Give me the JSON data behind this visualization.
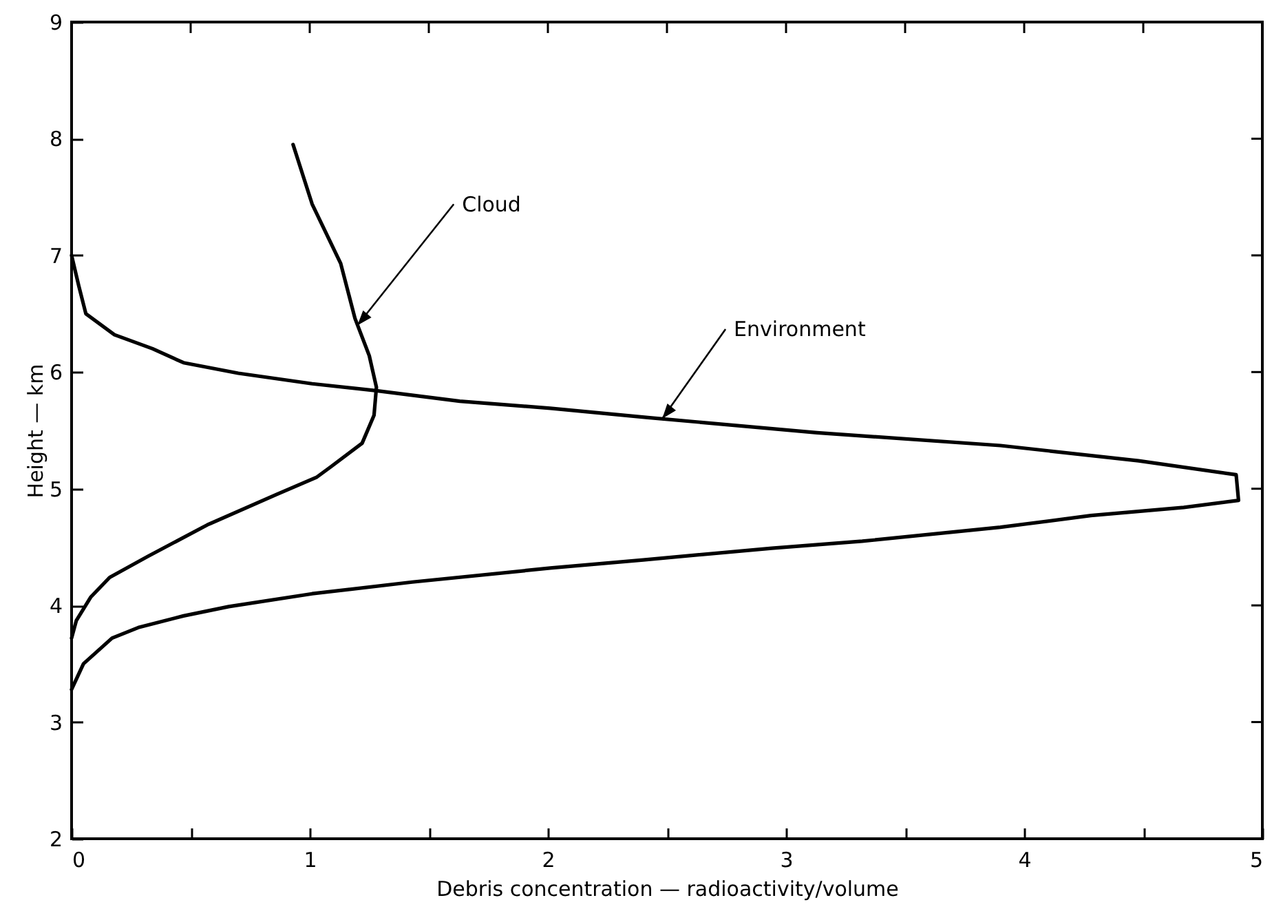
{
  "chart_data": {
    "type": "line",
    "xlabel": "Debris concentration — radioactivity/volume",
    "ylabel": "Height — km",
    "xlim": [
      0,
      5
    ],
    "ylim": [
      2,
      9
    ],
    "xticks": [
      0,
      {
        "value": 0.5,
        "label": null
      },
      1,
      {
        "value": 1.5,
        "label": null
      },
      2,
      {
        "value": 2.5,
        "label": null
      },
      3,
      {
        "value": 3.5,
        "label": null
      },
      4,
      {
        "value": 4.5,
        "label": null
      },
      5
    ],
    "yticks": [
      2,
      3,
      4,
      5,
      6,
      7,
      8,
      9
    ],
    "grid": false,
    "marker": "none",
    "line_style": "solid",
    "series": [
      {
        "color": "#000000",
        "x": [
          0.0,
          0.03,
          0.06,
          0.18,
          0.34,
          0.47,
          0.7,
          1.01,
          1.28,
          1.63,
          2.01,
          2.42,
          3.13,
          3.9,
          4.48,
          4.89,
          4.9,
          4.67,
          4.28,
          3.9,
          3.32,
          2.94,
          2.4,
          2.01,
          1.43,
          1.01,
          0.66,
          0.47,
          0.28,
          0.17,
          0.05,
          0.0
        ],
        "values": [
          7.0,
          6.74,
          6.5,
          6.32,
          6.2,
          6.08,
          5.99,
          5.9,
          5.84,
          5.75,
          5.69,
          5.61,
          5.48,
          5.37,
          5.24,
          5.12,
          4.9,
          4.84,
          4.77,
          4.67,
          4.55,
          4.49,
          4.39,
          4.32,
          4.2,
          4.1,
          3.99,
          3.91,
          3.81,
          3.72,
          3.5,
          3.28
        ]
      },
      {
        "color": "#000000",
        "x": [
          0.93,
          1.01,
          1.13,
          1.19,
          1.25,
          1.28,
          1.27,
          1.22,
          1.09,
          1.03,
          0.86,
          0.57,
          0.32,
          0.16,
          0.08,
          0.02,
          0.0
        ],
        "values": [
          7.95,
          7.44,
          6.93,
          6.46,
          6.14,
          5.87,
          5.63,
          5.39,
          5.19,
          5.1,
          4.95,
          4.69,
          4.42,
          4.24,
          4.07,
          3.87,
          3.72
        ]
      }
    ],
    "annotations": [
      {
        "text": "Cloud",
        "x": 1.2,
        "y": 6.4
      },
      {
        "text": "Environment",
        "x": 2.48,
        "y": 5.6
      }
    ]
  }
}
